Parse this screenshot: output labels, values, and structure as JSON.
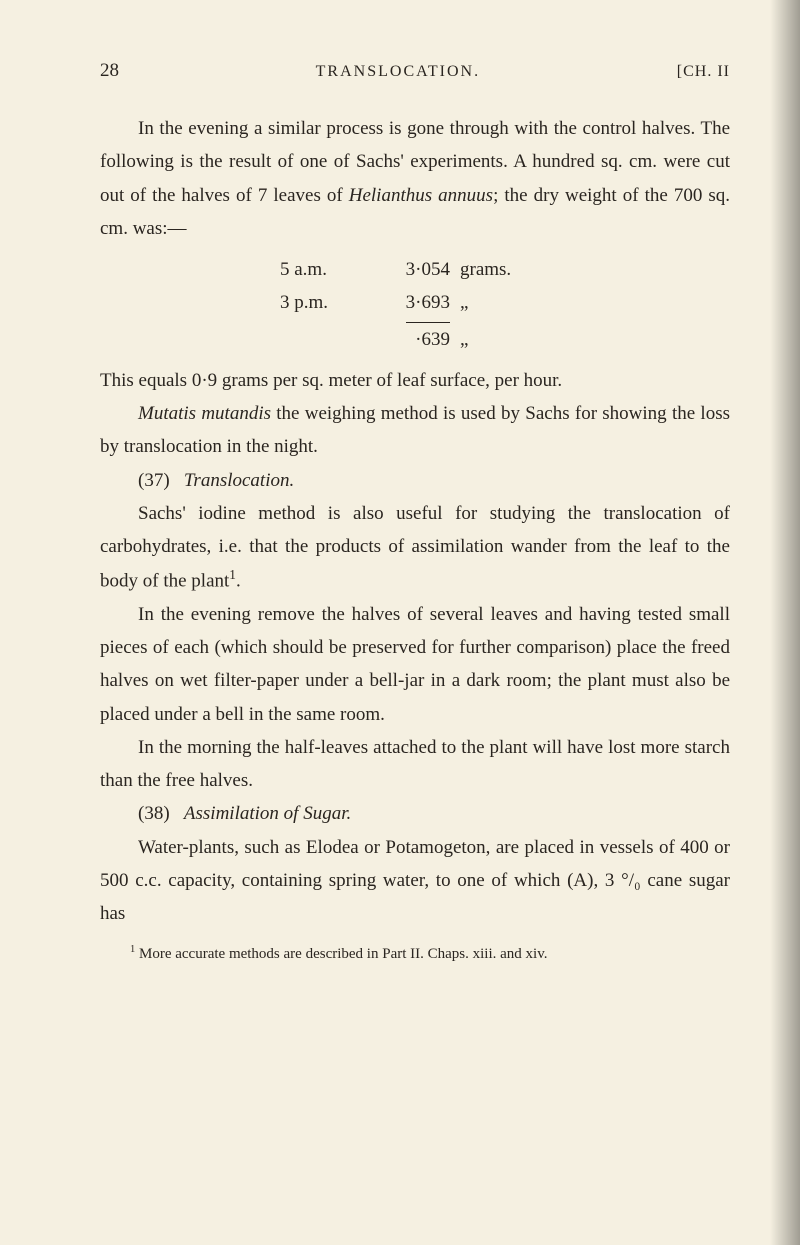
{
  "header": {
    "page_number": "28",
    "title": "TRANSLOCATION.",
    "chapter": "[CH. II"
  },
  "para1": "In the evening a similar process is gone through with the control halves. The following is the result of one of Sachs' experiments. A hundred sq. cm. were cut out of the halves of 7 leaves of ",
  "para1_italic": "Helianthus annuus",
  "para1_cont": "; the dry weight of the 700 sq. cm. was:—",
  "table": {
    "row1_col1": "5 a.m.",
    "row1_col2": "3·054",
    "row1_col3": "grams.",
    "row2_col1": "3 p.m.",
    "row2_col2": "3·693",
    "row2_col3": "„",
    "row3_col1": "",
    "row3_col2": "·639",
    "row3_col3": "„"
  },
  "para2": "This equals 0·9 grams per sq. meter of leaf surface, per hour.",
  "para3_italic": "Mutatis mutandis",
  "para3": " the weighing method is used by Sachs for showing the loss by translocation in the night.",
  "section37_num": "(37)",
  "section37_title": "Translocation.",
  "para4": "Sachs' iodine method is also useful for studying the translocation of carbohydrates, i.e. that the products of assimilation wander from the leaf to the body of the plant",
  "para4_sup": "1",
  "para4_end": ".",
  "para5": "In the evening remove the halves of several leaves and having tested small pieces of each (which should be preserved for further comparison) place the freed halves on wet filter-paper under a bell-jar in a dark room; the plant must also be placed under a bell in the same room.",
  "para6": "In the morning the half-leaves attached to the plant will have lost more starch than the free halves.",
  "section38_num": "(38)",
  "section38_title": "Assimilation of Sugar.",
  "para7": "Water-plants, such as Elodea or Potamogeton, are placed in vessels of 400 or 500 c.c. capacity, containing spring water, to one of which (A), 3 °/₀ cane sugar has",
  "footnote_num": "1",
  "footnote": " More accurate methods are described in Part II. Chaps. xiii. and xiv."
}
